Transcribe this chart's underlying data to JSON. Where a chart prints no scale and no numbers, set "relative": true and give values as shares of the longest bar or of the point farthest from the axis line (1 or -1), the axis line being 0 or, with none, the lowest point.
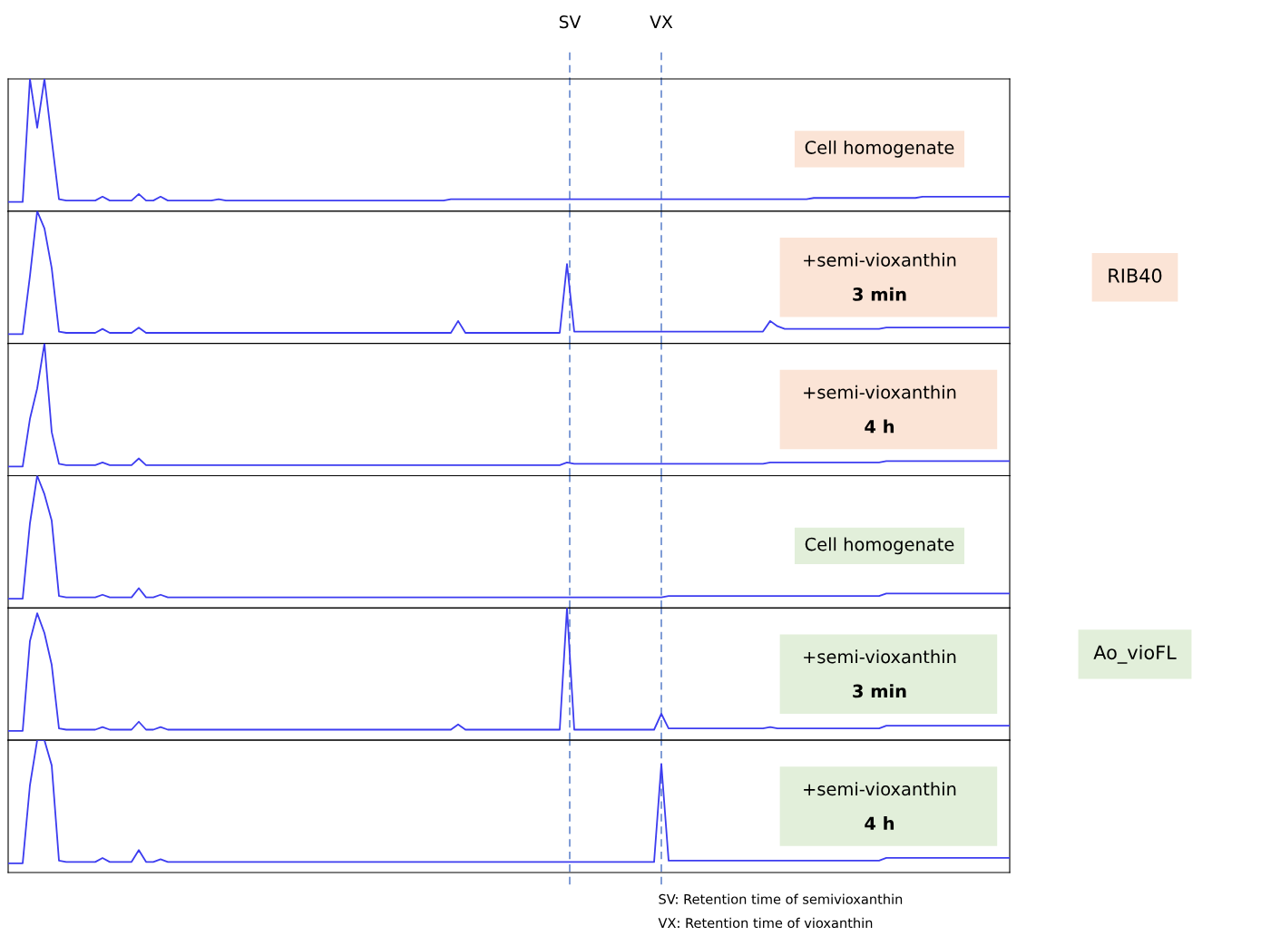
{
  "chart_data": [
    {
      "type": "line",
      "relative": true,
      "grid": false,
      "legend": false,
      "marker": "none",
      "line_style": "solid",
      "categories": [
        null,
        null,
        null,
        null,
        null,
        null,
        null,
        null,
        null,
        null,
        null,
        null,
        null,
        null,
        null,
        null,
        null,
        null,
        null,
        null,
        null,
        null,
        null,
        null,
        null,
        null,
        null,
        null,
        null,
        null,
        null,
        null,
        null,
        null,
        null,
        null,
        null,
        null,
        null,
        null,
        null,
        null,
        null,
        null,
        null,
        null,
        null,
        null,
        null,
        null,
        null,
        null,
        null,
        null,
        null,
        null,
        null,
        null,
        null,
        null,
        null,
        null,
        null,
        null,
        null,
        null,
        null,
        null,
        null,
        null,
        null,
        null,
        null,
        null,
        null,
        null,
        null,
        null,
        null,
        null,
        null,
        null,
        null,
        null,
        null,
        null,
        null,
        null,
        null,
        null,
        null,
        null,
        null,
        null,
        null,
        null,
        null,
        null,
        null,
        null,
        null,
        null,
        null,
        null,
        null,
        null,
        null,
        null,
        null,
        null,
        null,
        null,
        null,
        null,
        null,
        null,
        null,
        null,
        null,
        null,
        null,
        null,
        null,
        null,
        null,
        null,
        null,
        null,
        null,
        null,
        null,
        null,
        null,
        null,
        null,
        null,
        null,
        null,
        null
      ],
      "series": [
        {
          "color": "#3c3cf0",
          "values": [
            0.07,
            0.07,
            0.07,
            1,
            0.63,
            1,
            0.54,
            0.09,
            0.08,
            0.08,
            0.08,
            0.08,
            0.08,
            0.11,
            0.08,
            0.08,
            0.08,
            0.08,
            0.13,
            0.08,
            0.08,
            0.11,
            0.08,
            0.08,
            0.08,
            0.08,
            0.08,
            0.08,
            0.08,
            0.09,
            0.08,
            0.08,
            0.08,
            0.08,
            0.08,
            0.08,
            0.08,
            0.08,
            0.08,
            0.08,
            0.08,
            0.08,
            0.08,
            0.08,
            0.08,
            0.08,
            0.08,
            0.08,
            0.08,
            0.08,
            0.08,
            0.08,
            0.08,
            0.08,
            0.08,
            0.08,
            0.08,
            0.08,
            0.08,
            0.08,
            0.08,
            0.09,
            0.09,
            0.09,
            0.09,
            0.09,
            0.09,
            0.09,
            0.09,
            0.09,
            0.09,
            0.09,
            0.09,
            0.09,
            0.09,
            0.09,
            0.09,
            0.09,
            0.09,
            0.09,
            0.09,
            0.09,
            0.09,
            0.09,
            0.09,
            0.09,
            0.09,
            0.09,
            0.09,
            0.09,
            0.09,
            0.09,
            0.09,
            0.09,
            0.09,
            0.09,
            0.09,
            0.09,
            0.09,
            0.09,
            0.09,
            0.09,
            0.09,
            0.09,
            0.09,
            0.09,
            0.09,
            0.09,
            0.09,
            0.09,
            0.09,
            0.1,
            0.1,
            0.1,
            0.1,
            0.1,
            0.1,
            0.1,
            0.1,
            0.1,
            0.1,
            0.1,
            0.1,
            0.1,
            0.1,
            0.1,
            0.11,
            0.11,
            0.11,
            0.11,
            0.11,
            0.11,
            0.11,
            0.11,
            0.11,
            0.11,
            0.11,
            0.11,
            0.11
          ]
        }
      ],
      "annotations": [
        "Cell homogenate",
        "SV",
        "VX"
      ]
    },
    {
      "type": "line",
      "relative": true,
      "grid": false,
      "legend": false,
      "marker": "none",
      "line_style": "solid",
      "categories": [
        null,
        null,
        null,
        null,
        null,
        null,
        null,
        null,
        null,
        null,
        null,
        null,
        null,
        null,
        null,
        null,
        null,
        null,
        null,
        null,
        null,
        null,
        null,
        null,
        null,
        null,
        null,
        null,
        null,
        null,
        null,
        null,
        null,
        null,
        null,
        null,
        null,
        null,
        null,
        null,
        null,
        null,
        null,
        null,
        null,
        null,
        null,
        null,
        null,
        null,
        null,
        null,
        null,
        null,
        null,
        null,
        null,
        null,
        null,
        null,
        null,
        null,
        null,
        null,
        null,
        null,
        null,
        null,
        null,
        null,
        null,
        null,
        null,
        null,
        null,
        null,
        null,
        null,
        null,
        null,
        null,
        null,
        null,
        null,
        null,
        null,
        null,
        null,
        null,
        null,
        null,
        null,
        null,
        null,
        null,
        null,
        null,
        null,
        null,
        null,
        null,
        null,
        null,
        null,
        null,
        null,
        null,
        null,
        null,
        null,
        null,
        null,
        null,
        null,
        null,
        null,
        null,
        null,
        null,
        null,
        null,
        null,
        null,
        null,
        null,
        null,
        null,
        null,
        null,
        null,
        null,
        null,
        null,
        null,
        null,
        null,
        null,
        null,
        null
      ],
      "series": [
        {
          "color": "#3c3cf0",
          "values": [
            0.07,
            0.07,
            0.07,
            0.51,
            1,
            0.87,
            0.57,
            0.09,
            0.08,
            0.08,
            0.08,
            0.08,
            0.08,
            0.11,
            0.08,
            0.08,
            0.08,
            0.08,
            0.12,
            0.08,
            0.08,
            0.08,
            0.08,
            0.08,
            0.08,
            0.08,
            0.08,
            0.08,
            0.08,
            0.08,
            0.08,
            0.08,
            0.08,
            0.08,
            0.08,
            0.08,
            0.08,
            0.08,
            0.08,
            0.08,
            0.08,
            0.08,
            0.08,
            0.08,
            0.08,
            0.08,
            0.08,
            0.08,
            0.08,
            0.08,
            0.08,
            0.08,
            0.08,
            0.08,
            0.08,
            0.08,
            0.08,
            0.08,
            0.08,
            0.08,
            0.08,
            0.08,
            0.17,
            0.08,
            0.08,
            0.08,
            0.08,
            0.08,
            0.08,
            0.08,
            0.08,
            0.08,
            0.08,
            0.08,
            0.08,
            0.08,
            0.08,
            0.6,
            0.09,
            0.09,
            0.09,
            0.09,
            0.09,
            0.09,
            0.09,
            0.09,
            0.09,
            0.09,
            0.09,
            0.09,
            0.09,
            0.09,
            0.09,
            0.09,
            0.09,
            0.09,
            0.09,
            0.09,
            0.09,
            0.09,
            0.09,
            0.09,
            0.09,
            0.09,
            0.09,
            0.17,
            0.13,
            0.11,
            0.11,
            0.11,
            0.11,
            0.11,
            0.11,
            0.11,
            0.11,
            0.11,
            0.11,
            0.11,
            0.11,
            0.11,
            0.11,
            0.12,
            0.12,
            0.12,
            0.12,
            0.12,
            0.12,
            0.12,
            0.12,
            0.12,
            0.12,
            0.12,
            0.12,
            0.12,
            0.12,
            0.12,
            0.12,
            0.12,
            0.12
          ]
        }
      ],
      "annotations": [
        "+semi-vioxanthin\n3 min",
        "RIB40"
      ]
    },
    {
      "type": "line",
      "relative": true,
      "grid": false,
      "legend": false,
      "marker": "none",
      "line_style": "solid",
      "categories": [
        null,
        null,
        null,
        null,
        null,
        null,
        null,
        null,
        null,
        null,
        null,
        null,
        null,
        null,
        null,
        null,
        null,
        null,
        null,
        null,
        null,
        null,
        null,
        null,
        null,
        null,
        null,
        null,
        null,
        null,
        null,
        null,
        null,
        null,
        null,
        null,
        null,
        null,
        null,
        null,
        null,
        null,
        null,
        null,
        null,
        null,
        null,
        null,
        null,
        null,
        null,
        null,
        null,
        null,
        null,
        null,
        null,
        null,
        null,
        null,
        null,
        null,
        null,
        null,
        null,
        null,
        null,
        null,
        null,
        null,
        null,
        null,
        null,
        null,
        null,
        null,
        null,
        null,
        null,
        null,
        null,
        null,
        null,
        null,
        null,
        null,
        null,
        null,
        null,
        null,
        null,
        null,
        null,
        null,
        null,
        null,
        null,
        null,
        null,
        null,
        null,
        null,
        null,
        null,
        null,
        null,
        null,
        null,
        null,
        null,
        null,
        null,
        null,
        null,
        null,
        null,
        null,
        null,
        null,
        null,
        null,
        null,
        null,
        null,
        null,
        null,
        null,
        null,
        null,
        null,
        null,
        null,
        null,
        null,
        null,
        null,
        null,
        null,
        null
      ],
      "series": [
        {
          "color": "#3c3cf0",
          "values": [
            0.07,
            0.07,
            0.07,
            0.43,
            0.66,
            1,
            0.33,
            0.09,
            0.08,
            0.08,
            0.08,
            0.08,
            0.08,
            0.1,
            0.08,
            0.08,
            0.08,
            0.08,
            0.13,
            0.08,
            0.08,
            0.08,
            0.08,
            0.08,
            0.08,
            0.08,
            0.08,
            0.08,
            0.08,
            0.08,
            0.08,
            0.08,
            0.08,
            0.08,
            0.08,
            0.08,
            0.08,
            0.08,
            0.08,
            0.08,
            0.08,
            0.08,
            0.08,
            0.08,
            0.08,
            0.08,
            0.08,
            0.08,
            0.08,
            0.08,
            0.08,
            0.08,
            0.08,
            0.08,
            0.08,
            0.08,
            0.08,
            0.08,
            0.08,
            0.08,
            0.08,
            0.08,
            0.08,
            0.08,
            0.08,
            0.08,
            0.08,
            0.08,
            0.08,
            0.08,
            0.08,
            0.08,
            0.08,
            0.08,
            0.08,
            0.08,
            0.08,
            0.1,
            0.09,
            0.09,
            0.09,
            0.09,
            0.09,
            0.09,
            0.09,
            0.09,
            0.09,
            0.09,
            0.09,
            0.09,
            0.09,
            0.09,
            0.09,
            0.09,
            0.09,
            0.09,
            0.09,
            0.09,
            0.09,
            0.09,
            0.09,
            0.09,
            0.09,
            0.09,
            0.09,
            0.1,
            0.1,
            0.1,
            0.1,
            0.1,
            0.1,
            0.1,
            0.1,
            0.1,
            0.1,
            0.1,
            0.1,
            0.1,
            0.1,
            0.1,
            0.1,
            0.11,
            0.11,
            0.11,
            0.11,
            0.11,
            0.11,
            0.11,
            0.11,
            0.11,
            0.11,
            0.11,
            0.11,
            0.11,
            0.11,
            0.11,
            0.11,
            0.11,
            0.11
          ]
        }
      ],
      "annotations": [
        "+semi-vioxanthin\n4 h"
      ]
    },
    {
      "type": "line",
      "relative": true,
      "grid": false,
      "legend": false,
      "marker": "none",
      "line_style": "solid",
      "categories": [
        null,
        null,
        null,
        null,
        null,
        null,
        null,
        null,
        null,
        null,
        null,
        null,
        null,
        null,
        null,
        null,
        null,
        null,
        null,
        null,
        null,
        null,
        null,
        null,
        null,
        null,
        null,
        null,
        null,
        null,
        null,
        null,
        null,
        null,
        null,
        null,
        null,
        null,
        null,
        null,
        null,
        null,
        null,
        null,
        null,
        null,
        null,
        null,
        null,
        null,
        null,
        null,
        null,
        null,
        null,
        null,
        null,
        null,
        null,
        null,
        null,
        null,
        null,
        null,
        null,
        null,
        null,
        null,
        null,
        null,
        null,
        null,
        null,
        null,
        null,
        null,
        null,
        null,
        null,
        null,
        null,
        null,
        null,
        null,
        null,
        null,
        null,
        null,
        null,
        null,
        null,
        null,
        null,
        null,
        null,
        null,
        null,
        null,
        null,
        null,
        null,
        null,
        null,
        null,
        null,
        null,
        null,
        null,
        null,
        null,
        null,
        null,
        null,
        null,
        null,
        null,
        null,
        null,
        null,
        null,
        null,
        null,
        null,
        null,
        null,
        null,
        null,
        null,
        null,
        null,
        null,
        null,
        null,
        null,
        null,
        null,
        null,
        null,
        null
      ],
      "series": [
        {
          "color": "#3c3cf0",
          "values": [
            0.07,
            0.07,
            0.07,
            0.64,
            1,
            0.86,
            0.66,
            0.09,
            0.08,
            0.08,
            0.08,
            0.08,
            0.08,
            0.1,
            0.08,
            0.08,
            0.08,
            0.08,
            0.15,
            0.08,
            0.08,
            0.1,
            0.08,
            0.08,
            0.08,
            0.08,
            0.08,
            0.08,
            0.08,
            0.08,
            0.08,
            0.08,
            0.08,
            0.08,
            0.08,
            0.08,
            0.08,
            0.08,
            0.08,
            0.08,
            0.08,
            0.08,
            0.08,
            0.08,
            0.08,
            0.08,
            0.08,
            0.08,
            0.08,
            0.08,
            0.08,
            0.08,
            0.08,
            0.08,
            0.08,
            0.08,
            0.08,
            0.08,
            0.08,
            0.08,
            0.08,
            0.08,
            0.08,
            0.08,
            0.08,
            0.08,
            0.08,
            0.08,
            0.08,
            0.08,
            0.08,
            0.08,
            0.08,
            0.08,
            0.08,
            0.08,
            0.08,
            0.08,
            0.08,
            0.08,
            0.08,
            0.08,
            0.08,
            0.08,
            0.08,
            0.08,
            0.08,
            0.08,
            0.08,
            0.08,
            0.08,
            0.09,
            0.09,
            0.09,
            0.09,
            0.09,
            0.09,
            0.09,
            0.09,
            0.09,
            0.09,
            0.09,
            0.09,
            0.09,
            0.09,
            0.09,
            0.09,
            0.09,
            0.09,
            0.09,
            0.09,
            0.09,
            0.09,
            0.09,
            0.09,
            0.09,
            0.09,
            0.09,
            0.09,
            0.09,
            0.09,
            0.11,
            0.11,
            0.11,
            0.11,
            0.11,
            0.11,
            0.11,
            0.11,
            0.11,
            0.11,
            0.11,
            0.11,
            0.11,
            0.11,
            0.11,
            0.11,
            0.11,
            0.11
          ]
        }
      ],
      "annotations": [
        "Cell homogenate"
      ]
    },
    {
      "type": "line",
      "relative": true,
      "grid": false,
      "legend": false,
      "marker": "none",
      "line_style": "solid",
      "categories": [
        null,
        null,
        null,
        null,
        null,
        null,
        null,
        null,
        null,
        null,
        null,
        null,
        null,
        null,
        null,
        null,
        null,
        null,
        null,
        null,
        null,
        null,
        null,
        null,
        null,
        null,
        null,
        null,
        null,
        null,
        null,
        null,
        null,
        null,
        null,
        null,
        null,
        null,
        null,
        null,
        null,
        null,
        null,
        null,
        null,
        null,
        null,
        null,
        null,
        null,
        null,
        null,
        null,
        null,
        null,
        null,
        null,
        null,
        null,
        null,
        null,
        null,
        null,
        null,
        null,
        null,
        null,
        null,
        null,
        null,
        null,
        null,
        null,
        null,
        null,
        null,
        null,
        null,
        null,
        null,
        null,
        null,
        null,
        null,
        null,
        null,
        null,
        null,
        null,
        null,
        null,
        null,
        null,
        null,
        null,
        null,
        null,
        null,
        null,
        null,
        null,
        null,
        null,
        null,
        null,
        null,
        null,
        null,
        null,
        null,
        null,
        null,
        null,
        null,
        null,
        null,
        null,
        null,
        null,
        null,
        null,
        null,
        null,
        null,
        null,
        null,
        null,
        null,
        null,
        null,
        null,
        null,
        null,
        null,
        null,
        null,
        null,
        null,
        null
      ],
      "series": [
        {
          "color": "#3c3cf0",
          "values": [
            0.07,
            0.07,
            0.07,
            0.75,
            0.96,
            0.81,
            0.57,
            0.09,
            0.08,
            0.08,
            0.08,
            0.08,
            0.08,
            0.1,
            0.08,
            0.08,
            0.08,
            0.08,
            0.14,
            0.08,
            0.08,
            0.1,
            0.08,
            0.08,
            0.08,
            0.08,
            0.08,
            0.08,
            0.08,
            0.08,
            0.08,
            0.08,
            0.08,
            0.08,
            0.08,
            0.08,
            0.08,
            0.08,
            0.08,
            0.08,
            0.08,
            0.08,
            0.08,
            0.08,
            0.08,
            0.08,
            0.08,
            0.08,
            0.08,
            0.08,
            0.08,
            0.08,
            0.08,
            0.08,
            0.08,
            0.08,
            0.08,
            0.08,
            0.08,
            0.08,
            0.08,
            0.08,
            0.12,
            0.08,
            0.08,
            0.08,
            0.08,
            0.08,
            0.08,
            0.08,
            0.08,
            0.08,
            0.08,
            0.08,
            0.08,
            0.08,
            0.08,
            1,
            0.08,
            0.08,
            0.08,
            0.08,
            0.08,
            0.08,
            0.08,
            0.08,
            0.08,
            0.08,
            0.08,
            0.08,
            0.2,
            0.09,
            0.09,
            0.09,
            0.09,
            0.09,
            0.09,
            0.09,
            0.09,
            0.09,
            0.09,
            0.09,
            0.09,
            0.09,
            0.09,
            0.1,
            0.09,
            0.09,
            0.09,
            0.09,
            0.09,
            0.09,
            0.09,
            0.09,
            0.09,
            0.09,
            0.09,
            0.09,
            0.09,
            0.09,
            0.09,
            0.11,
            0.11,
            0.11,
            0.11,
            0.11,
            0.11,
            0.11,
            0.11,
            0.11,
            0.11,
            0.11,
            0.11,
            0.11,
            0.11,
            0.11,
            0.11,
            0.11,
            0.11
          ]
        }
      ],
      "annotations": [
        "+semi-vioxanthin\n3 min",
        "Ao_vioFL"
      ]
    },
    {
      "type": "line",
      "relative": true,
      "grid": false,
      "legend": false,
      "marker": "none",
      "line_style": "solid",
      "categories": [
        null,
        null,
        null,
        null,
        null,
        null,
        null,
        null,
        null,
        null,
        null,
        null,
        null,
        null,
        null,
        null,
        null,
        null,
        null,
        null,
        null,
        null,
        null,
        null,
        null,
        null,
        null,
        null,
        null,
        null,
        null,
        null,
        null,
        null,
        null,
        null,
        null,
        null,
        null,
        null,
        null,
        null,
        null,
        null,
        null,
        null,
        null,
        null,
        null,
        null,
        null,
        null,
        null,
        null,
        null,
        null,
        null,
        null,
        null,
        null,
        null,
        null,
        null,
        null,
        null,
        null,
        null,
        null,
        null,
        null,
        null,
        null,
        null,
        null,
        null,
        null,
        null,
        null,
        null,
        null,
        null,
        null,
        null,
        null,
        null,
        null,
        null,
        null,
        null,
        null,
        null,
        null,
        null,
        null,
        null,
        null,
        null,
        null,
        null,
        null,
        null,
        null,
        null,
        null,
        null,
        null,
        null,
        null,
        null,
        null,
        null,
        null,
        null,
        null,
        null,
        null,
        null,
        null,
        null,
        null,
        null,
        null,
        null,
        null,
        null,
        null,
        null,
        null,
        null,
        null,
        null,
        null,
        null,
        null,
        null,
        null,
        null,
        null,
        null
      ],
      "series": [
        {
          "color": "#3c3cf0",
          "values": [
            0.07,
            0.07,
            0.07,
            0.66,
            1,
            1,
            0.81,
            0.09,
            0.08,
            0.08,
            0.08,
            0.08,
            0.08,
            0.11,
            0.08,
            0.08,
            0.08,
            0.08,
            0.17,
            0.08,
            0.08,
            0.1,
            0.08,
            0.08,
            0.08,
            0.08,
            0.08,
            0.08,
            0.08,
            0.08,
            0.08,
            0.08,
            0.08,
            0.08,
            0.08,
            0.08,
            0.08,
            0.08,
            0.08,
            0.08,
            0.08,
            0.08,
            0.08,
            0.08,
            0.08,
            0.08,
            0.08,
            0.08,
            0.08,
            0.08,
            0.08,
            0.08,
            0.08,
            0.08,
            0.08,
            0.08,
            0.08,
            0.08,
            0.08,
            0.08,
            0.08,
            0.08,
            0.08,
            0.08,
            0.08,
            0.08,
            0.08,
            0.08,
            0.08,
            0.08,
            0.08,
            0.08,
            0.08,
            0.08,
            0.08,
            0.08,
            0.08,
            0.08,
            0.08,
            0.08,
            0.08,
            0.08,
            0.08,
            0.08,
            0.08,
            0.08,
            0.08,
            0.08,
            0.08,
            0.08,
            0.82,
            0.09,
            0.09,
            0.09,
            0.09,
            0.09,
            0.09,
            0.09,
            0.09,
            0.09,
            0.09,
            0.09,
            0.09,
            0.09,
            0.09,
            0.09,
            0.09,
            0.09,
            0.09,
            0.09,
            0.09,
            0.09,
            0.09,
            0.09,
            0.09,
            0.09,
            0.09,
            0.09,
            0.09,
            0.09,
            0.09,
            0.11,
            0.11,
            0.11,
            0.11,
            0.11,
            0.11,
            0.11,
            0.11,
            0.11,
            0.11,
            0.11,
            0.11,
            0.11,
            0.11,
            0.11,
            0.11,
            0.11,
            0.11
          ]
        }
      ],
      "annotations": [
        "+semi-vioxanthin\n4 h",
        "SV: Retention time of semivioxanthin",
        "VX: Retention time of vioxanthin"
      ]
    }
  ]
}
